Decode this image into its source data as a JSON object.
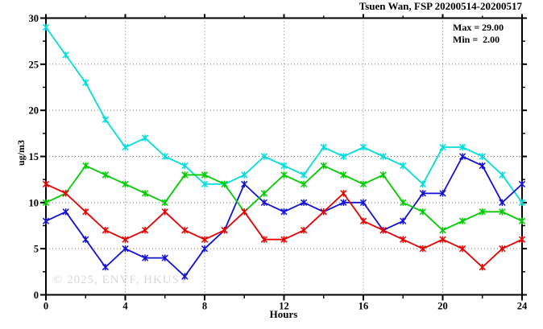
{
  "title": "Tsuen Wan, FSP 20200514-20200517",
  "annotation": {
    "max_label": "Max = 29.00",
    "min_label": "Min =  2.00"
  },
  "watermark": "© 2025, ENVF, HKUST",
  "chart_data": {
    "type": "line",
    "title": "Tsuen Wan, FSP 20200514-20200517",
    "xlabel": "Hours",
    "ylabel": "ug/m3",
    "xlim": [
      0,
      24
    ],
    "ylim": [
      0,
      30
    ],
    "x_major_ticks": [
      0,
      4,
      8,
      12,
      16,
      20,
      24
    ],
    "x_minor_step": 2,
    "y_major_ticks": [
      0,
      5,
      10,
      15,
      20,
      25,
      30
    ],
    "y_minor_step": 2.5,
    "grid": "dotted gray lines at interior major ticks, both axes",
    "legend": "none",
    "marker": "asterisk",
    "x": [
      0,
      1,
      2,
      3,
      4,
      5,
      6,
      7,
      8,
      9,
      10,
      11,
      12,
      13,
      14,
      15,
      16,
      17,
      18,
      19,
      20,
      21,
      22,
      23,
      24
    ],
    "series": [
      {
        "name": "cyan",
        "color": "#00dede",
        "values": [
          29,
          26,
          23,
          19,
          16,
          17,
          15,
          14,
          12,
          12,
          13,
          15,
          14,
          13,
          16,
          15,
          16,
          15,
          14,
          12,
          16,
          16,
          15,
          13,
          10
        ]
      },
      {
        "name": "blue",
        "color": "#1212d6",
        "values": [
          8,
          9,
          6,
          3,
          5,
          4,
          4,
          2,
          5,
          7,
          12,
          10,
          9,
          10,
          9,
          10,
          10,
          7,
          8,
          11,
          11,
          15,
          14,
          10,
          12
        ]
      },
      {
        "name": "green",
        "color": "#00cc00",
        "values": [
          10,
          11,
          14,
          13,
          12,
          11,
          10,
          13,
          13,
          12,
          9,
          11,
          13,
          12,
          14,
          13,
          12,
          13,
          10,
          9,
          7,
          8,
          9,
          9,
          8
        ]
      },
      {
        "name": "red",
        "color": "#e60000",
        "values": [
          12,
          11,
          9,
          7,
          6,
          7,
          9,
          7,
          6,
          7,
          9,
          6,
          6,
          7,
          9,
          11,
          8,
          7,
          6,
          5,
          6,
          5,
          3,
          5,
          6
        ]
      }
    ],
    "stats": {
      "max": 29.0,
      "min": 2.0
    }
  }
}
